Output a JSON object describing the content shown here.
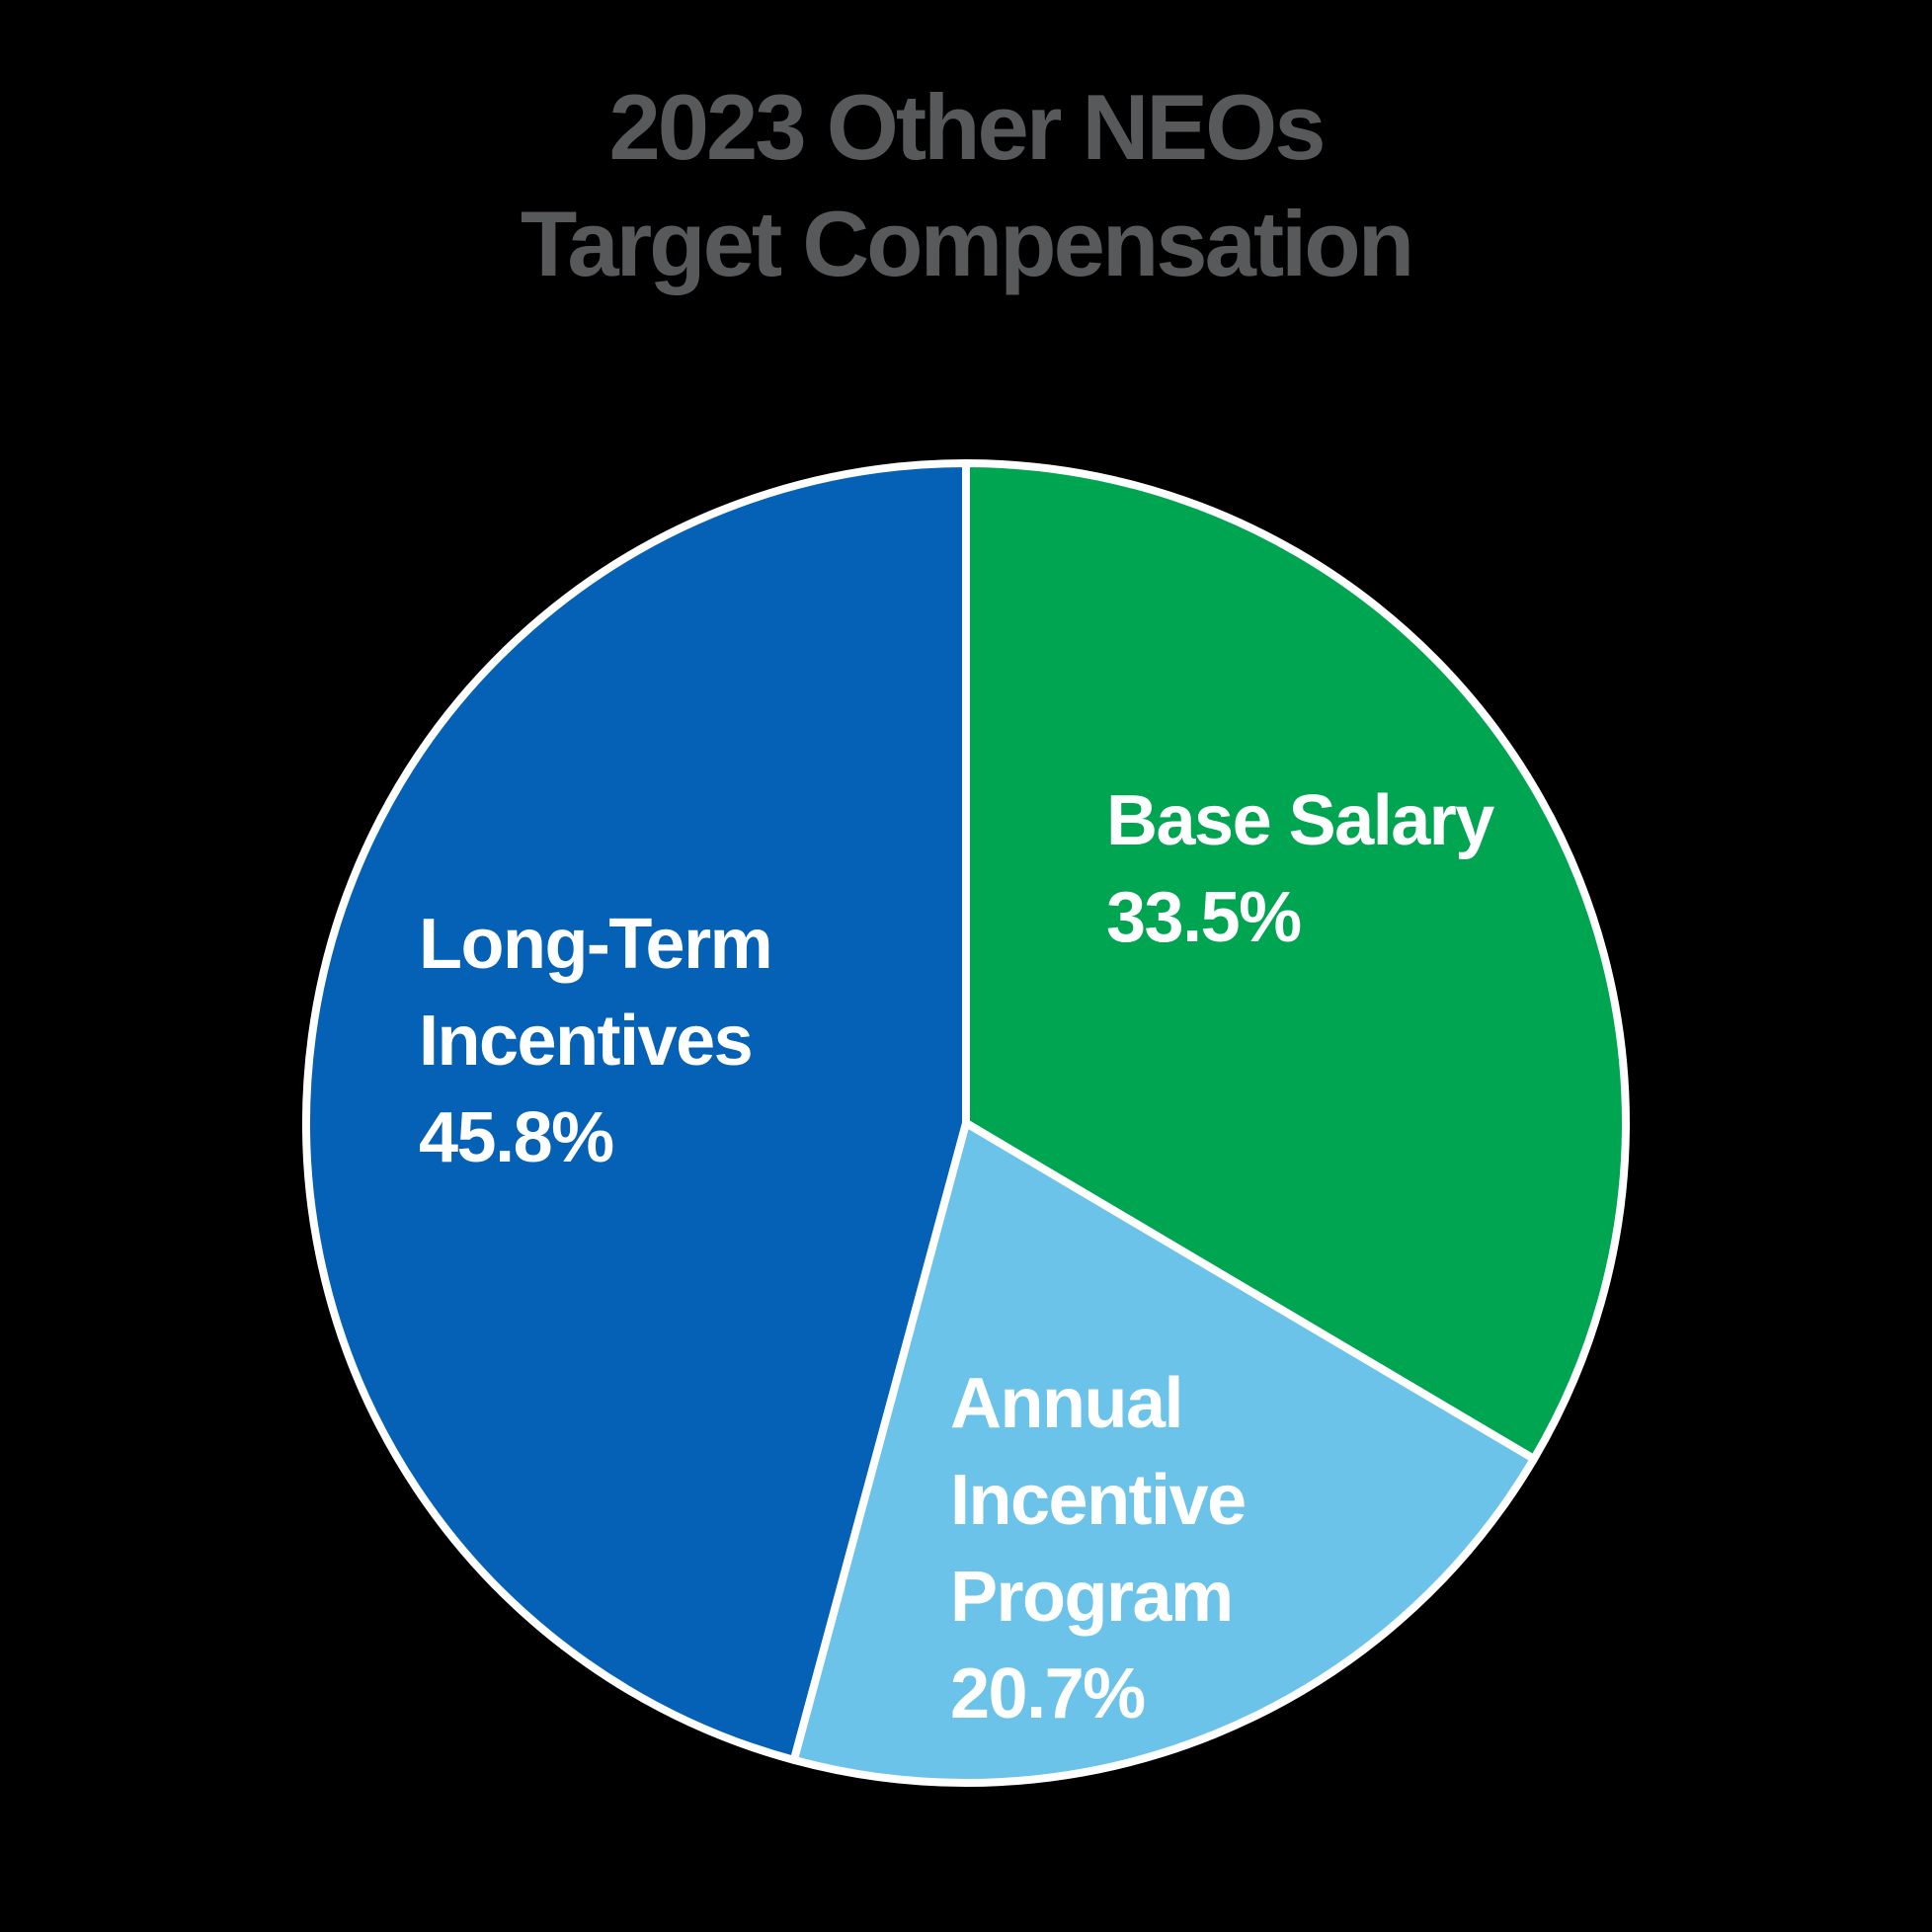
{
  "background": "#000000",
  "title": {
    "line1": "2023 Other NEOs",
    "line2": "Target Compensation",
    "color": "#58595B"
  },
  "chart_data": {
    "type": "pie",
    "title": "2023 Other NEOs Target Compensation",
    "direction": "clockwise",
    "start_angle_deg": 0,
    "outline_color": "#FFFFFF",
    "slices": [
      {
        "label": "Base Salary",
        "value": 33.5,
        "display": "33.5%",
        "color": "#00A551",
        "text_color": "#FFFFFF"
      },
      {
        "label": "Annual Incentive Program",
        "value": 20.7,
        "display": "20.7%",
        "color": "#6CC3E9",
        "text_color": "#FFFFFF"
      },
      {
        "label": "Long-Term Incentives",
        "value": 45.8,
        "display": "45.8%",
        "color": "#0561B5",
        "text_color": "#FFFFFF"
      }
    ]
  },
  "labels": {
    "base_salary": [
      "Base Salary",
      "33.5%"
    ],
    "annual_incentive": [
      "Annual",
      "Incentive",
      "Program",
      "20.7%"
    ],
    "long_term": [
      "Long-Term",
      "Incentives",
      "45.8%"
    ]
  }
}
